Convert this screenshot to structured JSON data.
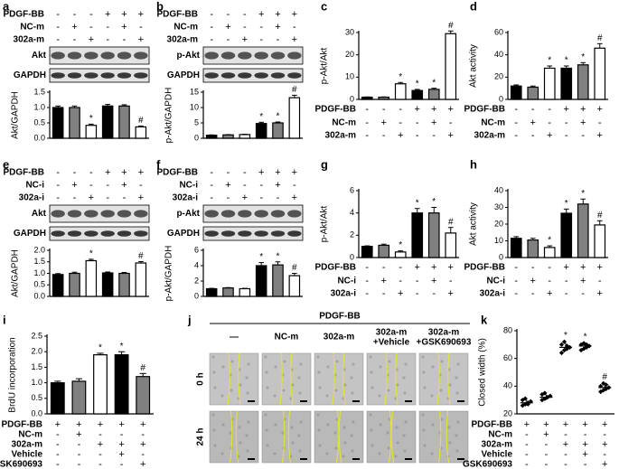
{
  "chart_data": [
    {
      "type": "bar",
      "label": "a",
      "ylabel": "Akt/GAPDH",
      "blots": [
        "Akt",
        "GAPDH"
      ],
      "conditions": [
        {
          "name": "PDGF-BB",
          "signs": [
            "-",
            "-",
            "-",
            "+",
            "+",
            "+"
          ]
        },
        {
          "name": "NC-m",
          "signs": [
            "-",
            "+",
            "-",
            "-",
            "+",
            "-"
          ]
        },
        {
          "name": "302a-m",
          "signs": [
            "-",
            "-",
            "+",
            "-",
            "-",
            "+"
          ]
        }
      ],
      "values": [
        1.0,
        1.0,
        0.42,
        1.05,
        1.05,
        0.37
      ],
      "errors": [
        0.05,
        0.05,
        0.04,
        0.05,
        0.04,
        0.03
      ],
      "markers": [
        null,
        null,
        "*",
        null,
        null,
        "#"
      ],
      "colors": [
        "#000000",
        "#808080",
        "#ffffff",
        "#000000",
        "#808080",
        "#ffffff"
      ],
      "ylim": [
        0,
        1.5
      ],
      "yticks": [
        {
          "value": 0,
          "label": "0.0"
        },
        0.5,
        {
          "value": 1,
          "label": "1.0"
        },
        1.5
      ]
    },
    {
      "type": "bar",
      "label": "b",
      "ylabel": "p-Akt/GAPDH",
      "blots": [
        "p-Akt",
        "GAPDH"
      ],
      "conditions": [
        {
          "name": "PDGF-BB",
          "signs": [
            "-",
            "-",
            "-",
            "+",
            "+",
            "+"
          ]
        },
        {
          "name": "NC-m",
          "signs": [
            "-",
            "+",
            "-",
            "-",
            "+",
            "-"
          ]
        },
        {
          "name": "302a-m",
          "signs": [
            "-",
            "-",
            "+",
            "-",
            "-",
            "+"
          ]
        }
      ],
      "values": [
        1.0,
        1.1,
        1.2,
        4.8,
        5.0,
        13.2
      ],
      "errors": [
        0.1,
        0.1,
        0.1,
        0.4,
        0.3,
        0.8
      ],
      "markers": [
        null,
        null,
        null,
        "*",
        "*",
        "#"
      ],
      "colors": [
        "#000000",
        "#808080",
        "#ffffff",
        "#000000",
        "#808080",
        "#ffffff"
      ],
      "ylim": [
        0,
        15
      ],
      "yticks": [
        0,
        5,
        10,
        15
      ]
    },
    {
      "type": "bar",
      "label": "c",
      "ylabel": "p-Akt/Akt",
      "conditions": [
        {
          "name": "PDGF-BB",
          "signs": [
            "-",
            "-",
            "-",
            "+",
            "+",
            "+"
          ]
        },
        {
          "name": "NC-m",
          "signs": [
            "-",
            "+",
            "-",
            "-",
            "+",
            "-"
          ]
        },
        {
          "name": "302a-m",
          "signs": [
            "-",
            "-",
            "+",
            "-",
            "-",
            "+"
          ]
        }
      ],
      "values": [
        1.0,
        1.0,
        7.0,
        4.0,
        4.5,
        29.5
      ],
      "errors": [
        0.1,
        0.1,
        0.6,
        0.5,
        0.5,
        1.2
      ],
      "markers": [
        null,
        null,
        "*",
        "*",
        "*",
        "#"
      ],
      "colors": [
        "#000000",
        "#808080",
        "#ffffff",
        "#000000",
        "#808080",
        "#ffffff"
      ],
      "ylim": [
        0,
        30
      ],
      "yticks": [
        0,
        10,
        20,
        30
      ]
    },
    {
      "type": "bar",
      "label": "d",
      "ylabel": "Akt activity",
      "conditions": [
        {
          "name": "PDGF-BB",
          "signs": [
            "-",
            "-",
            "-",
            "+",
            "+",
            "+"
          ]
        },
        {
          "name": "NC-m",
          "signs": [
            "-",
            "+",
            "-",
            "-",
            "+",
            "-"
          ]
        },
        {
          "name": "302a-m",
          "signs": [
            "-",
            "-",
            "+",
            "-",
            "-",
            "+"
          ]
        }
      ],
      "values": [
        12,
        11,
        28,
        28,
        31,
        46
      ],
      "errors": [
        1,
        1,
        2,
        2,
        2,
        4
      ],
      "markers": [
        null,
        null,
        "*",
        "*",
        "*",
        "#"
      ],
      "colors": [
        "#000000",
        "#808080",
        "#ffffff",
        "#000000",
        "#808080",
        "#ffffff"
      ],
      "ylim": [
        0,
        60
      ],
      "yticks": [
        0,
        20,
        40,
        60
      ]
    },
    {
      "type": "bar",
      "label": "e",
      "ylabel": "Akt/GAPDH",
      "blots": [
        "Akt",
        "GAPDH"
      ],
      "conditions": [
        {
          "name": "PDGF-BB",
          "signs": [
            "-",
            "-",
            "-",
            "+",
            "+",
            "+"
          ]
        },
        {
          "name": "NC-i",
          "signs": [
            "-",
            "+",
            "-",
            "-",
            "+",
            "-"
          ]
        },
        {
          "name": "302a-i",
          "signs": [
            "-",
            "-",
            "+",
            "-",
            "-",
            "+"
          ]
        }
      ],
      "values": [
        0.95,
        1.0,
        1.55,
        1.02,
        1.0,
        1.45
      ],
      "errors": [
        0.04,
        0.05,
        0.06,
        0.04,
        0.04,
        0.06
      ],
      "markers": [
        null,
        null,
        "*",
        null,
        null,
        "#"
      ],
      "colors": [
        "#000000",
        "#808080",
        "#ffffff",
        "#000000",
        "#808080",
        "#ffffff"
      ],
      "ylim": [
        0,
        2
      ],
      "yticks": [
        {
          "value": 0,
          "label": "0.0"
        },
        0.5,
        {
          "value": 1,
          "label": "1.0"
        },
        1.5,
        {
          "value": 2,
          "label": "2.0"
        }
      ]
    },
    {
      "type": "bar",
      "label": "f",
      "ylabel": "p-Akt/GAPDH",
      "blots": [
        "p-Akt",
        "GAPDH"
      ],
      "conditions": [
        {
          "name": "PDGF-BB",
          "signs": [
            "-",
            "-",
            "-",
            "+",
            "+",
            "+"
          ]
        },
        {
          "name": "NC-i",
          "signs": [
            "-",
            "+",
            "-",
            "-",
            "+",
            "-"
          ]
        },
        {
          "name": "302a-i",
          "signs": [
            "-",
            "-",
            "+",
            "-",
            "-",
            "+"
          ]
        }
      ],
      "values": [
        1.0,
        1.1,
        1.0,
        4.0,
        4.1,
        2.7
      ],
      "errors": [
        0.05,
        0.05,
        0.05,
        0.4,
        0.4,
        0.3
      ],
      "markers": [
        null,
        null,
        null,
        "*",
        "*",
        "#"
      ],
      "colors": [
        "#000000",
        "#808080",
        "#ffffff",
        "#000000",
        "#808080",
        "#ffffff"
      ],
      "ylim": [
        0,
        6
      ],
      "yticks": [
        0,
        2,
        4,
        6
      ]
    },
    {
      "type": "bar",
      "label": "g",
      "ylabel": "p-Akt/Akt",
      "conditions": [
        {
          "name": "PDGF-BB",
          "signs": [
            "-",
            "-",
            "-",
            "+",
            "+",
            "+"
          ]
        },
        {
          "name": "NC-i",
          "signs": [
            "-",
            "+",
            "-",
            "-",
            "+",
            "-"
          ]
        },
        {
          "name": "302a-i",
          "signs": [
            "-",
            "-",
            "+",
            "-",
            "-",
            "+"
          ]
        }
      ],
      "values": [
        1.0,
        1.1,
        0.5,
        4.0,
        4.0,
        2.2
      ],
      "errors": [
        0.05,
        0.1,
        0.1,
        0.4,
        0.5,
        0.5
      ],
      "markers": [
        null,
        null,
        "*",
        "*",
        "*",
        "#"
      ],
      "colors": [
        "#000000",
        "#808080",
        "#ffffff",
        "#000000",
        "#808080",
        "#ffffff"
      ],
      "ylim": [
        0,
        6
      ],
      "yticks": [
        0,
        2,
        4,
        6
      ]
    },
    {
      "type": "bar",
      "label": "h",
      "ylabel": "Akt activity",
      "conditions": [
        {
          "name": "PDGF-BB",
          "signs": [
            "-",
            "-",
            "-",
            "+",
            "+",
            "+"
          ]
        },
        {
          "name": "NC-i",
          "signs": [
            "-",
            "+",
            "-",
            "-",
            "+",
            "-"
          ]
        },
        {
          "name": "302a-i",
          "signs": [
            "-",
            "-",
            "+",
            "-",
            "-",
            "+"
          ]
        }
      ],
      "values": [
        11.5,
        10.5,
        6,
        26.5,
        32,
        19.5
      ],
      "errors": [
        1,
        1,
        1,
        2.5,
        3,
        2.5
      ],
      "markers": [
        null,
        null,
        "*",
        "*",
        "*",
        "#"
      ],
      "colors": [
        "#000000",
        "#808080",
        "#ffffff",
        "#000000",
        "#808080",
        "#ffffff"
      ],
      "ylim": [
        0,
        40
      ],
      "yticks": [
        0,
        10,
        20,
        30,
        40
      ]
    },
    {
      "type": "bar",
      "label": "i",
      "ylabel": "BrdU incorporation",
      "conditions": [
        {
          "name": "PDGF-BB",
          "signs": [
            "+",
            "+",
            "+",
            "+",
            "+"
          ]
        },
        {
          "name": "NC-m",
          "signs": [
            "-",
            "+",
            "-",
            "-",
            "-"
          ]
        },
        {
          "name": "302a-m",
          "signs": [
            "-",
            "-",
            "+",
            "+",
            "+"
          ]
        },
        {
          "name": "Vehicle",
          "signs": [
            "-",
            "-",
            "-",
            "+",
            "-"
          ]
        },
        {
          "name": "GSK690693",
          "signs": [
            "-",
            "-",
            "-",
            "-",
            "+"
          ]
        }
      ],
      "values": [
        1.0,
        1.05,
        1.9,
        1.9,
        1.2
      ],
      "errors": [
        0.05,
        0.08,
        0.05,
        0.1,
        0.1
      ],
      "markers": [
        null,
        null,
        "*",
        "*",
        "#"
      ],
      "colors": [
        "#000000",
        "#808080",
        "#ffffff",
        "#000000",
        "#808080"
      ],
      "ylim": [
        0,
        2.5
      ],
      "yticks": [
        {
          "value": 0,
          "label": "0.0"
        },
        0.5,
        {
          "value": 1,
          "label": "1.0"
        },
        1.5,
        {
          "value": 2,
          "label": "2.0"
        },
        2.5
      ]
    },
    {
      "type": "image-grid",
      "label": "j",
      "header": "PDGF-BB",
      "columns": [
        [
          "—"
        ],
        [
          "NC-m"
        ],
        [
          "302a-m"
        ],
        [
          "302a-m",
          "+Vehicle"
        ],
        [
          "302a-m",
          "+GSK690693"
        ]
      ],
      "rows": [
        "0 h",
        "24 h"
      ]
    },
    {
      "type": "dot",
      "label": "k",
      "ylabel": "Closed width (%)",
      "conditions": [
        {
          "name": "PDGF-BB",
          "signs": [
            "+",
            "+",
            "+",
            "+",
            "+"
          ]
        },
        {
          "name": "NC-m",
          "signs": [
            "-",
            "+",
            "-",
            "-",
            "-"
          ]
        },
        {
          "name": "302a-m",
          "signs": [
            "-",
            "-",
            "+",
            "+",
            "+"
          ]
        },
        {
          "name": "Vehicle",
          "signs": [
            "-",
            "-",
            "-",
            "+",
            "-"
          ]
        },
        {
          "name": "GSK690693",
          "signs": [
            "-",
            "-",
            "-",
            "-",
            "+"
          ]
        }
      ],
      "values": [
        28,
        32,
        68,
        69,
        39
      ],
      "errors": [
        2,
        2,
        3,
        2,
        2
      ],
      "points": [
        [
          26,
          27,
          28,
          29,
          30,
          31,
          27
        ],
        [
          30,
          31,
          32,
          33,
          34,
          35,
          32
        ],
        [
          64,
          66,
          67,
          68,
          70,
          72,
          69
        ],
        [
          66,
          67,
          68,
          69,
          70,
          71,
          70
        ],
        [
          36,
          37,
          38,
          39,
          40,
          42,
          41
        ]
      ],
      "markers": [
        null,
        null,
        "*",
        "*",
        "#"
      ],
      "ylim": [
        20,
        80
      ],
      "yticks": [
        20,
        40,
        60,
        80
      ]
    }
  ]
}
